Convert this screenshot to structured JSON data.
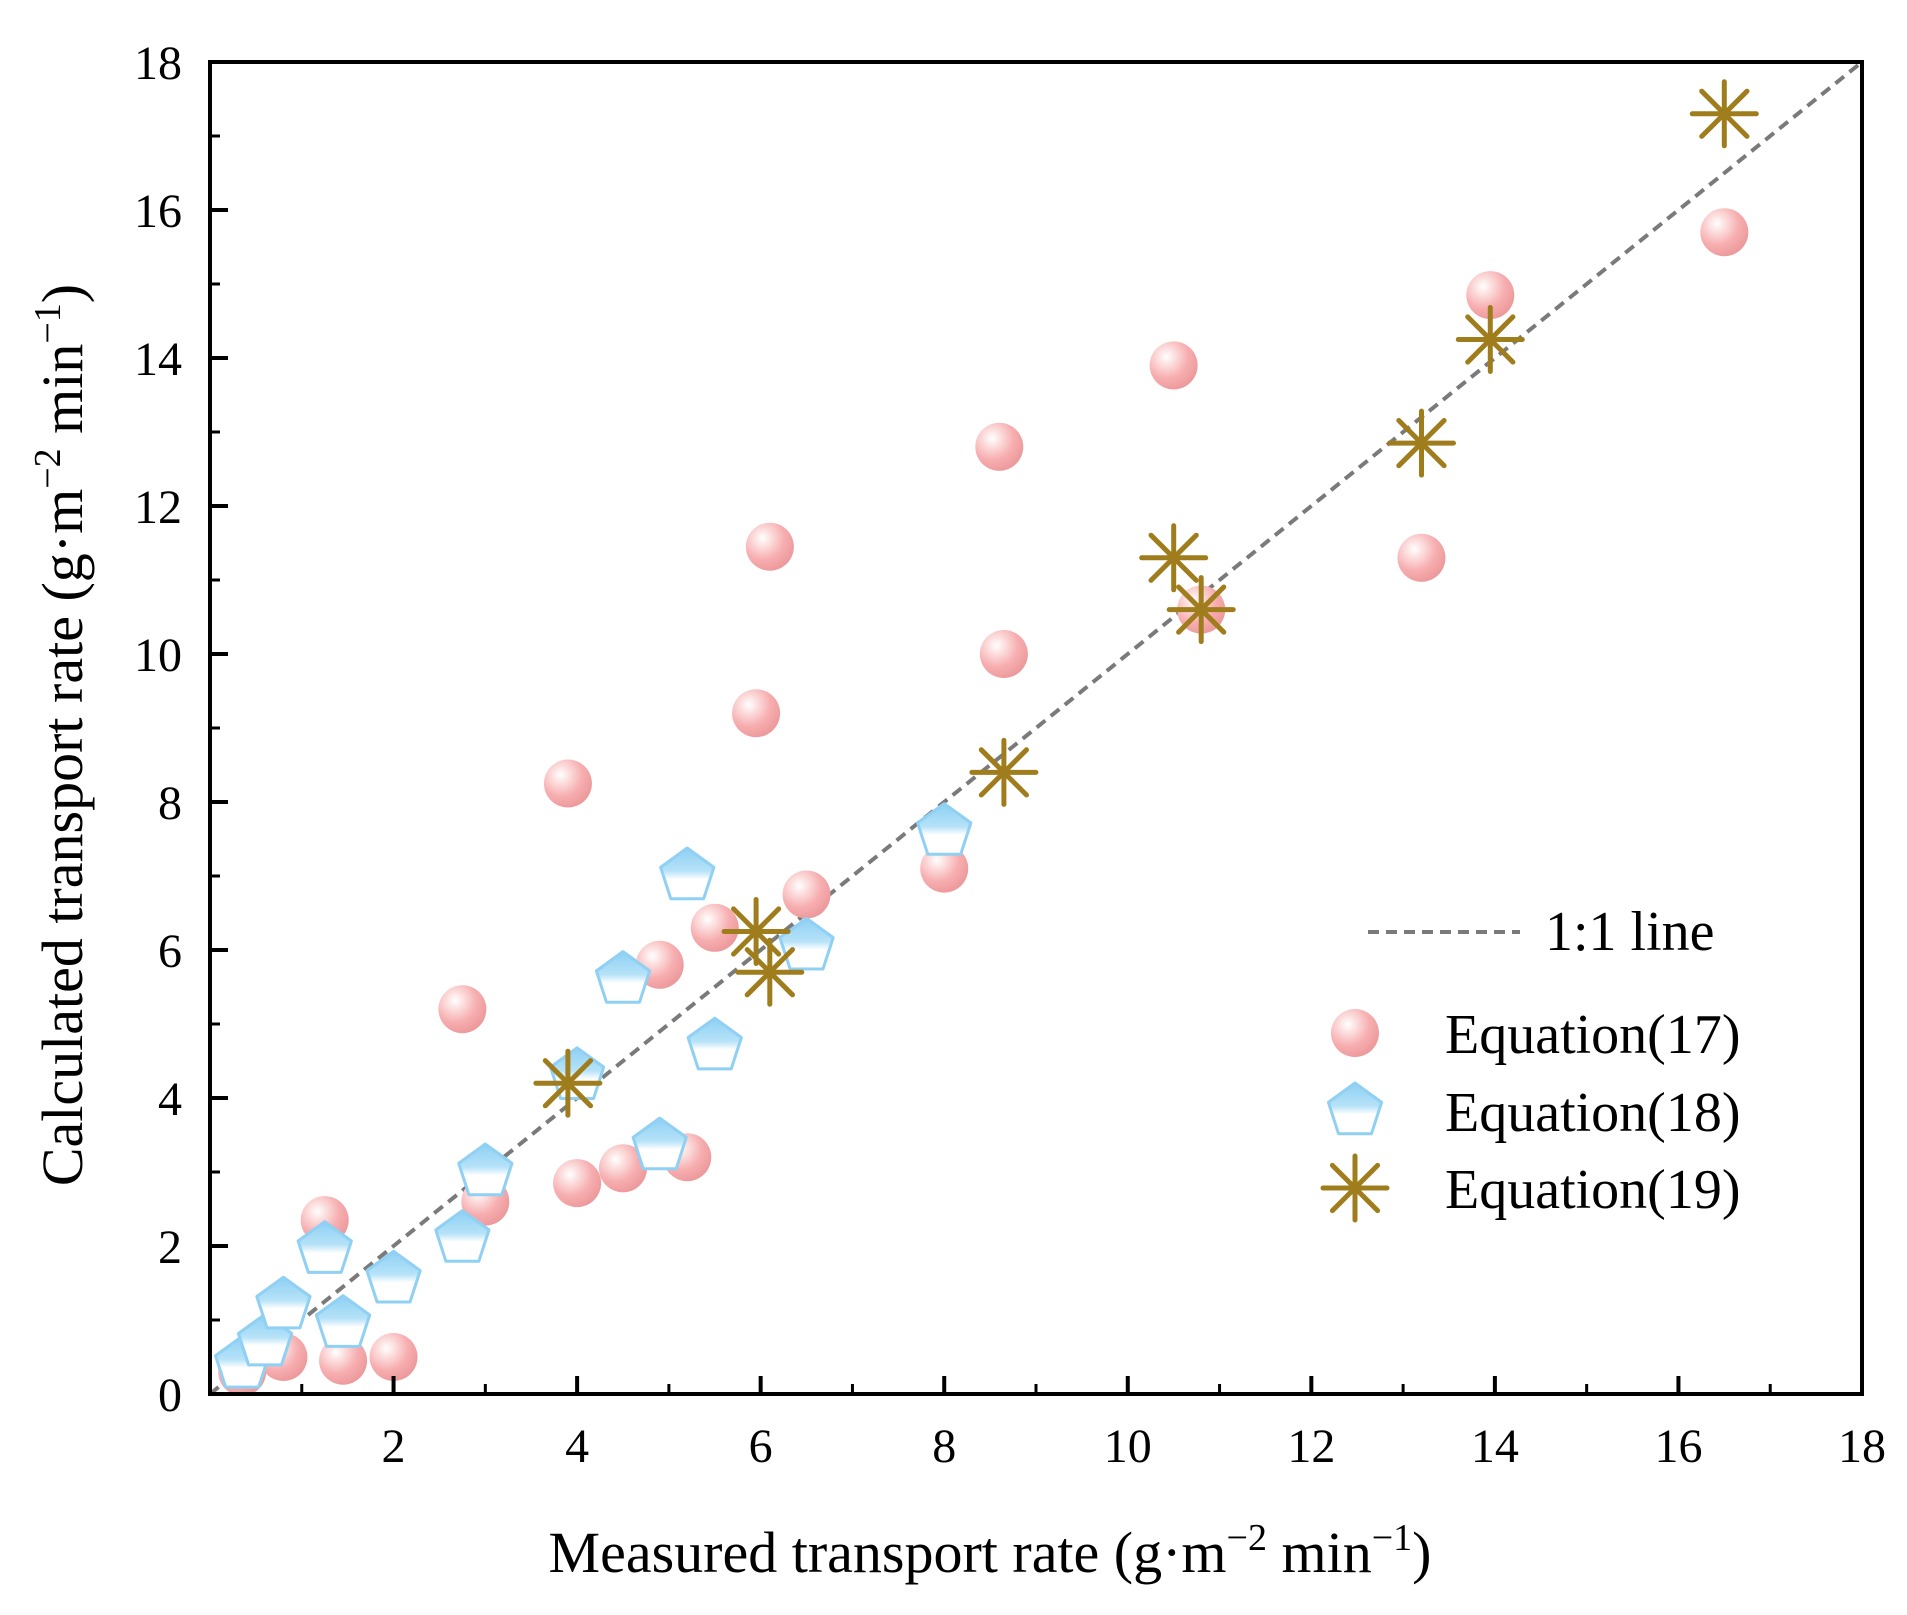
{
  "colors": {
    "eq17": "#f7a9ab",
    "eq18": "#9fd8f5",
    "eq19": "#a07d1c",
    "oneToOne": "#7a7a7a",
    "axis": "#000000"
  },
  "chart_data": {
    "type": "scatter",
    "title": "",
    "xlabel": {
      "prefix": "Measured transport rate (g·m",
      "sup1": "−2",
      "mid": " min",
      "sup2": "−1",
      "suffix": ")"
    },
    "ylabel": {
      "prefix": "Calculated transport rate (g·m",
      "sup1": "−2",
      "mid": " min",
      "sup2": "−1",
      "suffix": ")"
    },
    "xlim": [
      0,
      18
    ],
    "ylim": [
      0,
      18
    ],
    "xticks": [
      2,
      4,
      6,
      8,
      10,
      12,
      14,
      16,
      18
    ],
    "yticks": [
      0,
      2,
      4,
      6,
      8,
      10,
      12,
      14,
      16,
      18
    ],
    "grid": false,
    "legend_position": "right-middle",
    "reference_line": {
      "name": "1:1 line",
      "x": [
        0,
        18
      ],
      "y": [
        0,
        18
      ],
      "style": "dashed"
    },
    "series": [
      {
        "name": "Equation(17)",
        "marker": "sphere",
        "x": [
          0.35,
          0.8,
          1.25,
          1.45,
          2.0,
          2.75,
          3.0,
          3.9,
          4.0,
          4.5,
          4.9,
          5.2,
          5.5,
          5.95,
          6.1,
          6.5,
          8.0,
          8.6,
          8.65,
          10.5,
          10.8,
          13.2,
          13.95,
          16.5
        ],
        "y": [
          0.3,
          0.5,
          2.35,
          0.45,
          0.5,
          5.2,
          2.6,
          8.25,
          2.85,
          3.05,
          5.8,
          3.2,
          6.3,
          9.2,
          11.45,
          6.75,
          7.1,
          12.8,
          10.0,
          13.9,
          10.6,
          11.3,
          14.85,
          15.7
        ]
      },
      {
        "name": "Equation(18)",
        "marker": "pentagon",
        "x": [
          0.35,
          0.6,
          0.8,
          1.25,
          1.45,
          2.0,
          2.75,
          3.0,
          4.0,
          4.5,
          4.9,
          5.2,
          5.5,
          6.5,
          8.0
        ],
        "y": [
          0.4,
          0.7,
          1.2,
          1.95,
          0.95,
          1.55,
          2.1,
          3.0,
          4.3,
          5.6,
          3.35,
          7.0,
          4.7,
          6.05,
          7.6
        ]
      },
      {
        "name": "Equation(19)",
        "marker": "asterisk",
        "x": [
          3.9,
          5.95,
          6.1,
          8.65,
          10.5,
          10.8,
          13.2,
          13.95,
          16.5
        ],
        "y": [
          4.2,
          6.25,
          5.7,
          8.4,
          11.3,
          10.6,
          12.85,
          14.25,
          17.3
        ]
      }
    ]
  }
}
